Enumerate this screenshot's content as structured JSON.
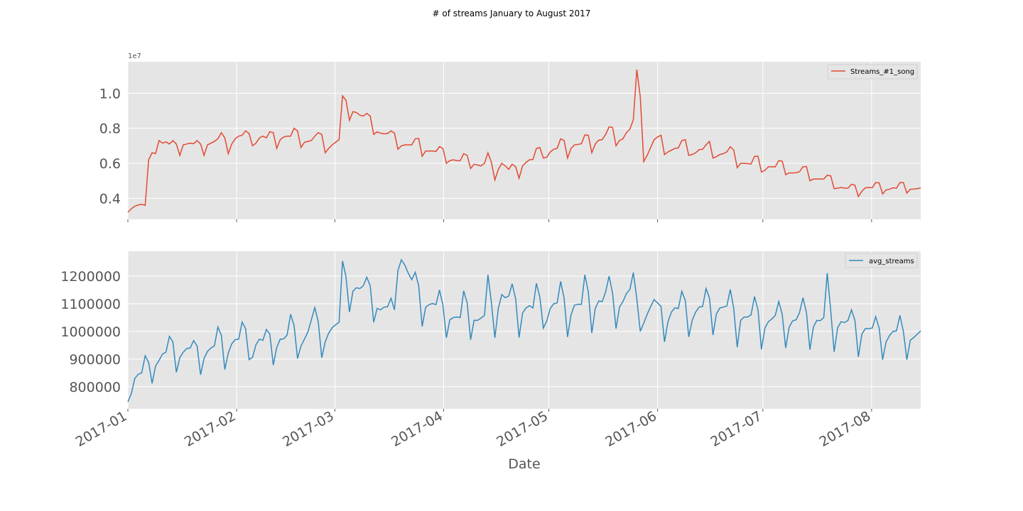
{
  "figure": {
    "title": "# of streams January to August 2017",
    "xlabel": "Date"
  },
  "colors": {
    "panel_bg": "#e5e5e5",
    "grid": "#ffffff",
    "tick_text": "#555555",
    "series_top": "#e24a33",
    "series_bottom": "#348abd"
  },
  "chart_data": [
    {
      "type": "line",
      "title": "",
      "xlabel": "Date",
      "ylabel": "",
      "offset_label": "1e7",
      "x_start": "2017-01-01",
      "x_end": "2017-08-15",
      "xlim": [
        "2017-01-01",
        "2017-08-15"
      ],
      "ylim": [
        0.28,
        1.18
      ],
      "yticks": [
        0.4,
        0.6,
        0.8,
        1.0
      ],
      "ytick_labels": [
        "0.4",
        "0.6",
        "0.8",
        "1.0"
      ],
      "grid": true,
      "legend": "top-right",
      "series": [
        {
          "name": "Streams_#1_song",
          "values": [
            0.32,
            0.34,
            0.355,
            0.362,
            0.365,
            0.36,
            0.62,
            0.66,
            0.655,
            0.73,
            0.715,
            0.722,
            0.71,
            0.73,
            0.71,
            0.645,
            0.705,
            0.71,
            0.715,
            0.712,
            0.73,
            0.71,
            0.645,
            0.705,
            0.715,
            0.725,
            0.74,
            0.775,
            0.745,
            0.655,
            0.71,
            0.74,
            0.755,
            0.76,
            0.785,
            0.77,
            0.7,
            0.715,
            0.745,
            0.755,
            0.745,
            0.78,
            0.775,
            0.685,
            0.735,
            0.75,
            0.755,
            0.755,
            0.8,
            0.785,
            0.69,
            0.72,
            0.725,
            0.73,
            0.755,
            0.775,
            0.765,
            0.66,
            0.685,
            0.705,
            0.72,
            0.735,
            0.985,
            0.96,
            0.845,
            0.895,
            0.89,
            0.875,
            0.87,
            0.885,
            0.87,
            0.765,
            0.78,
            0.772,
            0.768,
            0.77,
            0.785,
            0.772,
            0.68,
            0.7,
            0.705,
            0.705,
            0.705,
            0.74,
            0.742,
            0.64,
            0.67,
            0.67,
            0.67,
            0.668,
            0.695,
            0.685,
            0.6,
            0.615,
            0.62,
            0.615,
            0.615,
            0.655,
            0.645,
            0.57,
            0.595,
            0.59,
            0.585,
            0.6,
            0.66,
            0.605,
            0.505,
            0.565,
            0.6,
            0.585,
            0.565,
            0.595,
            0.58,
            0.515,
            0.585,
            0.605,
            0.62,
            0.622,
            0.685,
            0.69,
            0.63,
            0.635,
            0.665,
            0.68,
            0.685,
            0.74,
            0.73,
            0.63,
            0.685,
            0.705,
            0.708,
            0.712,
            0.762,
            0.76,
            0.66,
            0.71,
            0.732,
            0.735,
            0.765,
            0.808,
            0.805,
            0.7,
            0.73,
            0.74,
            0.775,
            0.795,
            0.85,
            1.135,
            0.98,
            0.61,
            0.645,
            0.69,
            0.735,
            0.75,
            0.76,
            0.65,
            0.665,
            0.675,
            0.685,
            0.688,
            0.73,
            0.735,
            0.645,
            0.65,
            0.66,
            0.678,
            0.68,
            0.705,
            0.725,
            0.63,
            0.638,
            0.65,
            0.655,
            0.665,
            0.695,
            0.675,
            0.575,
            0.6,
            0.6,
            0.598,
            0.596,
            0.64,
            0.64,
            0.55,
            0.56,
            0.58,
            0.58,
            0.58,
            0.615,
            0.612,
            0.535,
            0.545,
            0.545,
            0.546,
            0.552,
            0.58,
            0.582,
            0.5,
            0.51,
            0.51,
            0.51,
            0.51,
            0.532,
            0.528,
            0.455,
            0.458,
            0.462,
            0.458,
            0.458,
            0.48,
            0.475,
            0.41,
            0.44,
            0.46,
            0.462,
            0.46,
            0.49,
            0.488,
            0.425,
            0.448,
            0.452,
            0.46,
            0.458,
            0.49,
            0.49,
            0.43,
            0.452,
            0.453,
            0.455,
            0.46
          ]
        }
      ]
    },
    {
      "type": "line",
      "title": "",
      "xlabel": "Date",
      "ylabel": "",
      "x_start": "2017-01-01",
      "x_end": "2017-08-15",
      "xlim": [
        "2017-01-01",
        "2017-08-15"
      ],
      "ylim": [
        720000,
        1290000
      ],
      "yticks": [
        800000,
        900000,
        1000000,
        1100000,
        1200000
      ],
      "ytick_labels": [
        "800000",
        "900000",
        "1000000",
        "1100000",
        "1200000"
      ],
      "xticks": [
        "2017-01-01",
        "2017-02-01",
        "2017-03-01",
        "2017-04-01",
        "2017-05-01",
        "2017-06-01",
        "2017-07-01",
        "2017-08-01"
      ],
      "xtick_labels": [
        "2017-01",
        "2017-02",
        "2017-03",
        "2017-04",
        "2017-05",
        "2017-06",
        "2017-07",
        "2017-08"
      ],
      "grid": true,
      "legend": "top-right",
      "series": [
        {
          "name": "avg_streams",
          "values": [
            745000,
            775000,
            830000,
            845000,
            850000,
            912000,
            888000,
            812000,
            875000,
            895000,
            918000,
            925000,
            982000,
            962000,
            852000,
            905000,
            925000,
            938000,
            940000,
            967000,
            947000,
            843000,
            902000,
            928000,
            940000,
            948000,
            1016000,
            986000,
            862000,
            922000,
            955000,
            970000,
            972000,
            1034000,
            1010000,
            898000,
            906000,
            952000,
            972000,
            968000,
            1007000,
            990000,
            878000,
            942000,
            972000,
            973000,
            987000,
            1062000,
            1022000,
            902000,
            947000,
            972000,
            998000,
            1042000,
            1086000,
            1034000,
            905000,
            962000,
            994000,
            1013000,
            1024000,
            1033000,
            1255000,
            1198000,
            1070000,
            1145000,
            1158000,
            1155000,
            1165000,
            1196000,
            1165000,
            1033000,
            1083000,
            1078000,
            1088000,
            1089000,
            1120000,
            1078000,
            1220000,
            1259000,
            1240000,
            1210000,
            1187000,
            1214000,
            1165000,
            1018000,
            1087000,
            1097000,
            1101000,
            1097000,
            1150000,
            1095000,
            977000,
            1042000,
            1050000,
            1052000,
            1050000,
            1147000,
            1103000,
            970000,
            1040000,
            1040000,
            1048000,
            1058000,
            1205000,
            1104000,
            977000,
            1083000,
            1133000,
            1122000,
            1128000,
            1172000,
            1118000,
            978000,
            1066000,
            1085000,
            1093000,
            1085000,
            1174000,
            1123000,
            1012000,
            1038000,
            1083000,
            1100000,
            1103000,
            1181000,
            1120000,
            980000,
            1060000,
            1095000,
            1098000,
            1098000,
            1205000,
            1142000,
            994000,
            1083000,
            1110000,
            1108000,
            1143000,
            1200000,
            1138000,
            1010000,
            1088000,
            1108000,
            1137000,
            1152000,
            1213000,
            1118000,
            1000000,
            1030000,
            1062000,
            1090000,
            1115000,
            1103000,
            1090000,
            962000,
            1035000,
            1070000,
            1085000,
            1083000,
            1145000,
            1112000,
            980000,
            1040000,
            1070000,
            1088000,
            1090000,
            1155000,
            1120000,
            987000,
            1064000,
            1085000,
            1088000,
            1092000,
            1152000,
            1082000,
            943000,
            1040000,
            1052000,
            1052000,
            1060000,
            1126000,
            1078000,
            935000,
            1012000,
            1035000,
            1045000,
            1058000,
            1108000,
            1062000,
            940000,
            1015000,
            1038000,
            1042000,
            1068000,
            1122000,
            1068000,
            934000,
            1016000,
            1040000,
            1039000,
            1050000,
            1211000,
            1077000,
            926000,
            1013000,
            1035000,
            1032000,
            1040000,
            1078000,
            1040000,
            908000,
            990000,
            1010000,
            1010000,
            1012000,
            1053000,
            1012000,
            898000,
            962000,
            985000,
            1000000,
            1002000,
            1058000,
            1000000,
            898000,
            968000,
            978000,
            990000,
            1002000
          ]
        }
      ]
    }
  ]
}
